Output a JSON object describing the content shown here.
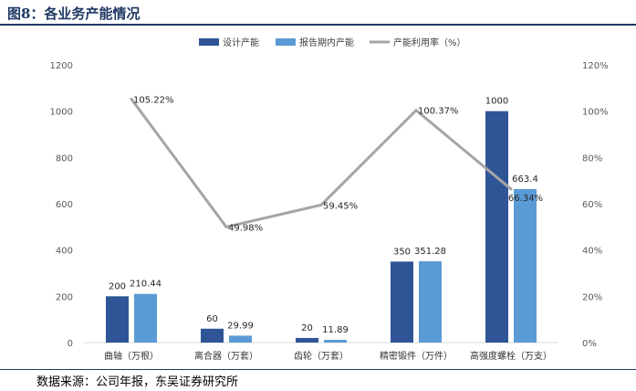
{
  "figure": {
    "title": "图8：各业务产能情况",
    "source": "数据来源：公司年报，东吴证券研究所"
  },
  "chart_data": {
    "type": "bar",
    "categories": [
      "曲轴（万根）",
      "离合器（万套）",
      "齿轮（万套）",
      "精密锻件（万件）",
      "高强度螺栓（万支）"
    ],
    "series": [
      {
        "name": "设计产能",
        "type": "bar",
        "axis": "left",
        "color": "#2f5597",
        "values": [
          200,
          60,
          20,
          350,
          1000
        ],
        "labels": [
          "200",
          "60",
          "20",
          "350",
          "1000"
        ]
      },
      {
        "name": "报告期内产能",
        "type": "bar",
        "axis": "left",
        "color": "#5b9bd5",
        "values": [
          210.44,
          29.99,
          11.89,
          351.28,
          663.4
        ],
        "labels": [
          "210.44",
          "29.99",
          "11.89",
          "351.28",
          "663.4"
        ]
      },
      {
        "name": "产能利用率（%）",
        "type": "line",
        "axis": "right",
        "color": "#a5a5a5",
        "values": [
          105.22,
          49.98,
          59.45,
          100.37,
          66.34
        ],
        "labels": [
          "105.22%",
          "49.98%",
          "59.45%",
          "100.37%",
          "66.34%"
        ]
      }
    ],
    "y_left": {
      "min": 0,
      "max": 1200,
      "ticks": [
        "0",
        "200",
        "400",
        "600",
        "800",
        "1000",
        "1200"
      ]
    },
    "y_right": {
      "min": 0,
      "max": 120,
      "ticks": [
        "0%",
        "20%",
        "40%",
        "60%",
        "80%",
        "100%",
        "120%"
      ]
    },
    "grid": false,
    "legend": "top-center"
  }
}
